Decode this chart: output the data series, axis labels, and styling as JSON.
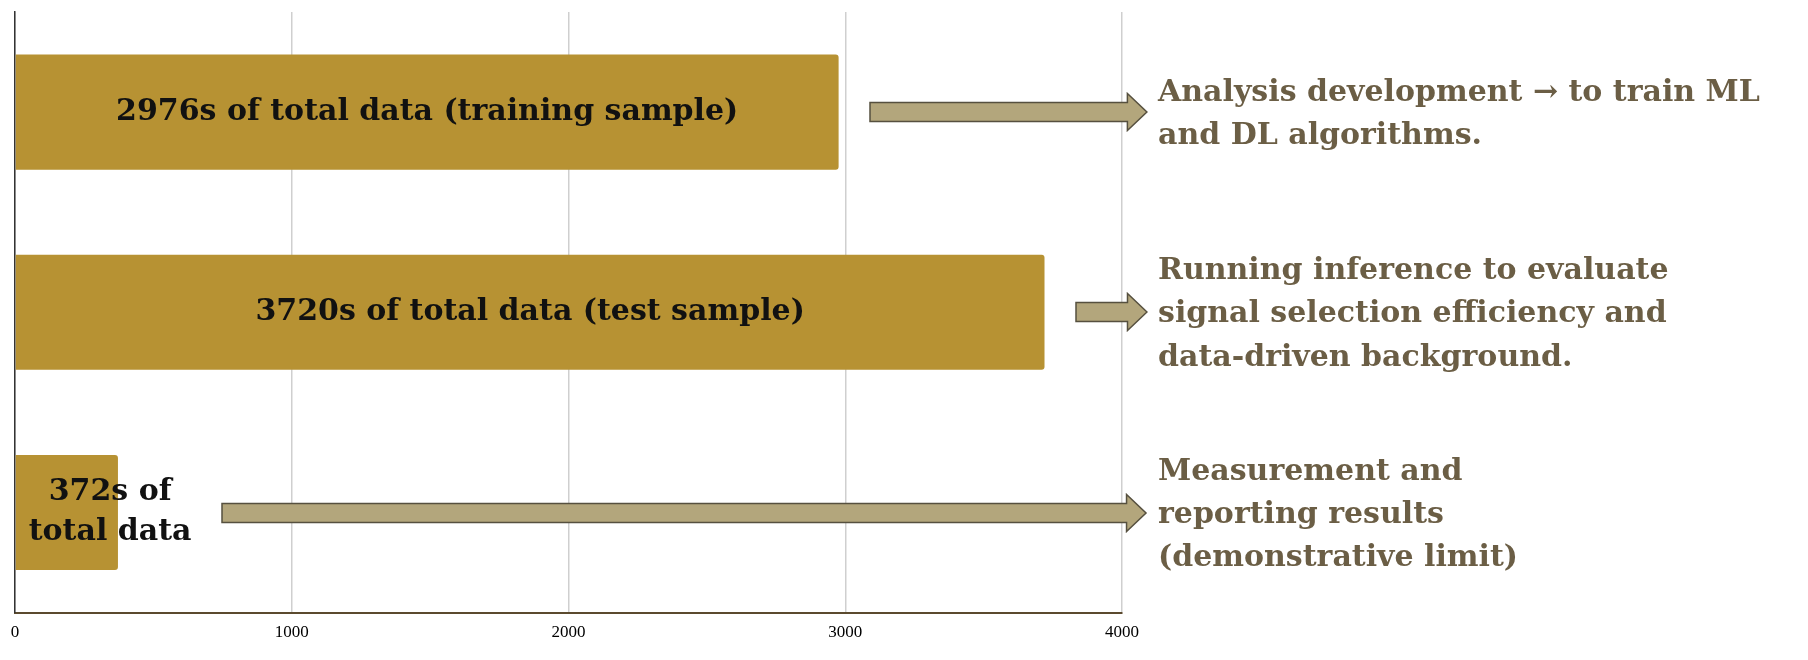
{
  "chart_data": {
    "type": "bar",
    "orientation": "horizontal",
    "categories": [
      null,
      null,
      null
    ],
    "values": [
      2976,
      3720,
      372
    ],
    "color": "#b79233",
    "value_labels": [
      "2976s of total data (training sample)",
      "3720s of total data (test sample)",
      "372s of total data"
    ],
    "xlim": [
      0,
      4000
    ],
    "xticks": [
      0,
      1000,
      2000,
      3000,
      4000
    ],
    "grid": "x",
    "tick_labels": "x",
    "legend": false,
    "annotations": [
      "Analysis development → to train ML and DL algorithms.",
      "Running inference to evaluate signal selection efficiency and data-driven background.",
      "Measurement and reporting results (demonstrative limit)"
    ]
  }
}
